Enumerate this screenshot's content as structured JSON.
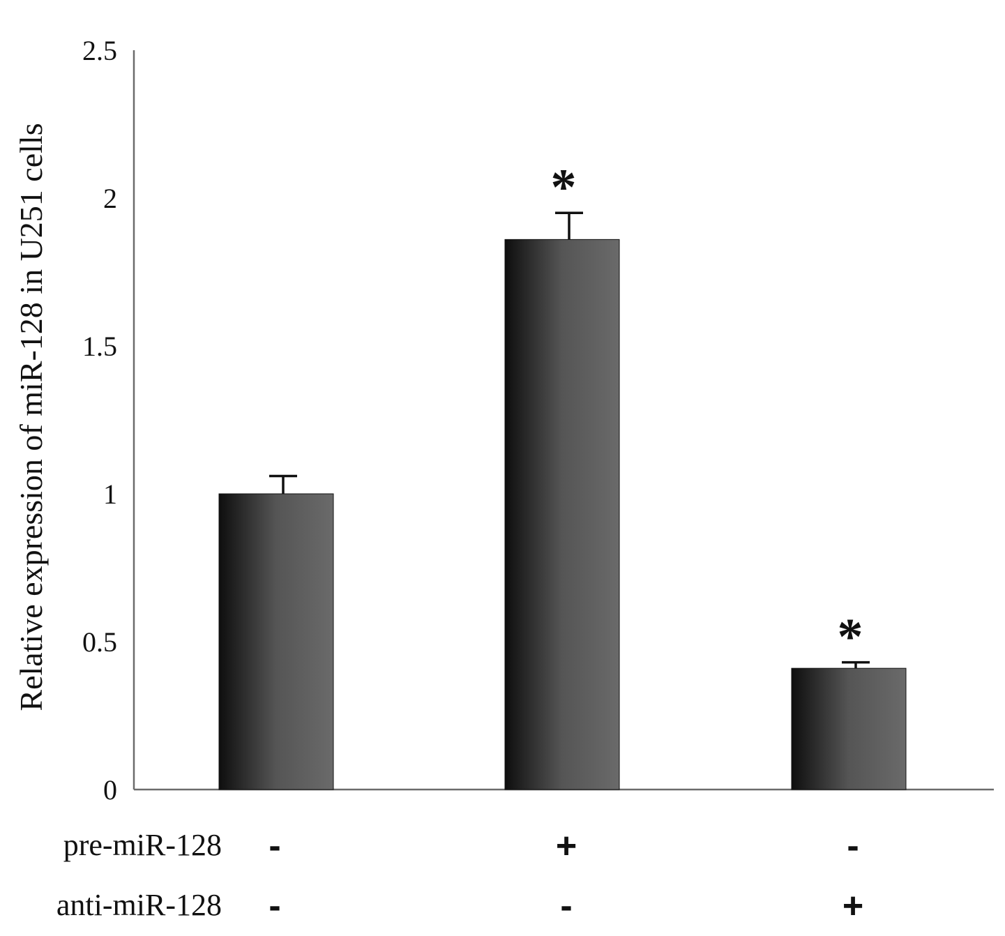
{
  "chart_data": {
    "type": "bar",
    "title": "",
    "xlabel": "",
    "ylabel": "Relative expression of miR-128 in U251 cells",
    "ylim": [
      0,
      2.5
    ],
    "yticks": [
      "0",
      "0.5",
      "1",
      "1.5",
      "2",
      "2.5"
    ],
    "grid": false,
    "legend": "none",
    "bar_gradient": [
      "#0e0e0e",
      "#6a6a6a"
    ],
    "series": [
      {
        "values": [
          1.0,
          1.86,
          0.41
        ],
        "errors": [
          0.06,
          0.09,
          0.02
        ],
        "significance": [
          "",
          "*",
          "*"
        ]
      }
    ],
    "condition_rows": [
      {
        "label": "pre-miR-128",
        "symbols": [
          "-",
          "+",
          "-"
        ]
      },
      {
        "label": "anti-miR-128",
        "symbols": [
          "-",
          "-",
          "+"
        ]
      }
    ]
  }
}
